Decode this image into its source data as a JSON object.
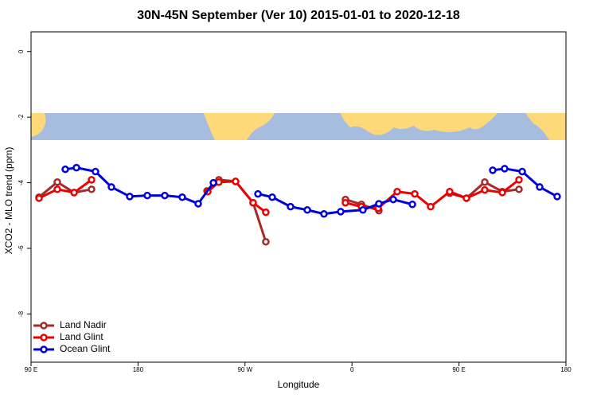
{
  "chart_data": {
    "type": "line",
    "title": "30N-45N September (Ver 10)   2015-01-01 to 2020-12-18",
    "x_label": "Longitude",
    "y_label": "XCO2 - MLO trend (ppm)",
    "xlim": [
      90,
      540
    ],
    "ylim": [
      -9.47,
      0.6
    ],
    "xticks": [
      {
        "value": 90,
        "label": "90 E"
      },
      {
        "value": 180,
        "label": "180"
      },
      {
        "value": 270,
        "label": "90 W"
      },
      {
        "value": 360,
        "label": "0"
      },
      {
        "value": 450,
        "label": "90 E"
      },
      {
        "value": 540,
        "label": "180"
      }
    ],
    "yticks": [
      0,
      -2,
      -4,
      -6,
      -8
    ],
    "legend": "bottom-left",
    "series": [
      {
        "name": "Land Nadir",
        "color": "#a52a2a",
        "x": [
          96.7,
          112.1,
          126.2,
          140.9,
          null,
          238.0,
          248.0,
          262.1,
          276.8,
          287.5,
          null,
          354.5,
          367.9,
          382.6,
          null,
          442.2,
          456.3,
          471.7,
          486.4,
          500.5
        ],
        "values": [
          -4.44,
          -3.98,
          -4.3,
          -4.2,
          null,
          -4.25,
          -3.91,
          -3.96,
          -4.61,
          -5.8,
          null,
          -4.51,
          -4.66,
          -4.85,
          null,
          -4.32,
          -4.47,
          -3.98,
          -4.27,
          -4.2
        ]
      },
      {
        "name": "Land Glint",
        "color": "#ee0000",
        "x": [
          96.7,
          112.1,
          126.2,
          140.9,
          null,
          238.7,
          248.0,
          262.1,
          276.8,
          287.5,
          null,
          354.5,
          367.9,
          382.0,
          398.0,
          412.8,
          426.2,
          442.2,
          456.3,
          471.7,
          486.4,
          500.5
        ],
        "values": [
          -4.47,
          -4.2,
          -4.3,
          -3.91,
          null,
          -4.27,
          -3.98,
          -3.96,
          -4.61,
          -4.9,
          null,
          -4.61,
          -4.73,
          -4.78,
          -4.27,
          -4.34,
          -4.73,
          -4.27,
          -4.47,
          -4.22,
          -4.3,
          -3.91
        ]
      },
      {
        "name": "Ocean Glint",
        "color": "#0000dd",
        "x": [
          118.8,
          128.2,
          144.2,
          157.6,
          173.0,
          187.8,
          202.5,
          217.2,
          230.6,
          243.4,
          null,
          280.9,
          292.9,
          308.3,
          322.4,
          336.4,
          350.5,
          369.2,
          382.6,
          394.7,
          410.8,
          null,
          478.4,
          488.4,
          503.2,
          517.9,
          532.6
        ],
        "values": [
          -3.59,
          -3.54,
          -3.66,
          -4.13,
          -4.42,
          -4.39,
          -4.39,
          -4.44,
          -4.64,
          -4.0,
          null,
          -4.34,
          -4.44,
          -4.73,
          -4.83,
          -4.95,
          -4.88,
          -4.83,
          -4.64,
          -4.51,
          -4.66,
          null,
          -3.62,
          -3.57,
          -3.66,
          -4.13,
          -4.42
        ]
      }
    ]
  }
}
